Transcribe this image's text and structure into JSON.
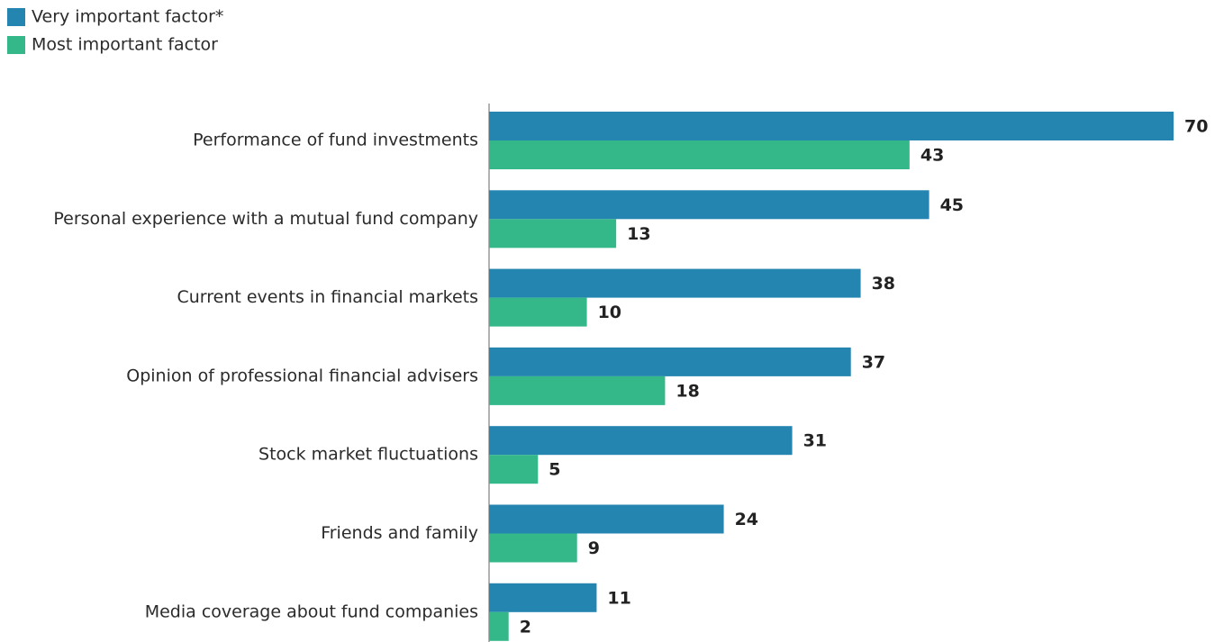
{
  "chart_data": {
    "type": "bar",
    "orientation": "horizontal",
    "categories": [
      "Performance of fund investments",
      "Personal experience with a mutual fund company",
      "Current events in financial markets",
      "Opinion of professional financial advisers",
      "Stock market fluctuations",
      "Friends and family",
      "Media coverage about fund companies"
    ],
    "series": [
      {
        "name": "Very important factor*",
        "color": "#2385b0",
        "values": [
          70,
          45,
          38,
          37,
          31,
          24,
          11
        ]
      },
      {
        "name": "Most important factor",
        "color": "#34b88a",
        "values": [
          43,
          13,
          10,
          18,
          5,
          9,
          2
        ]
      }
    ],
    "legend": "top-left"
  }
}
